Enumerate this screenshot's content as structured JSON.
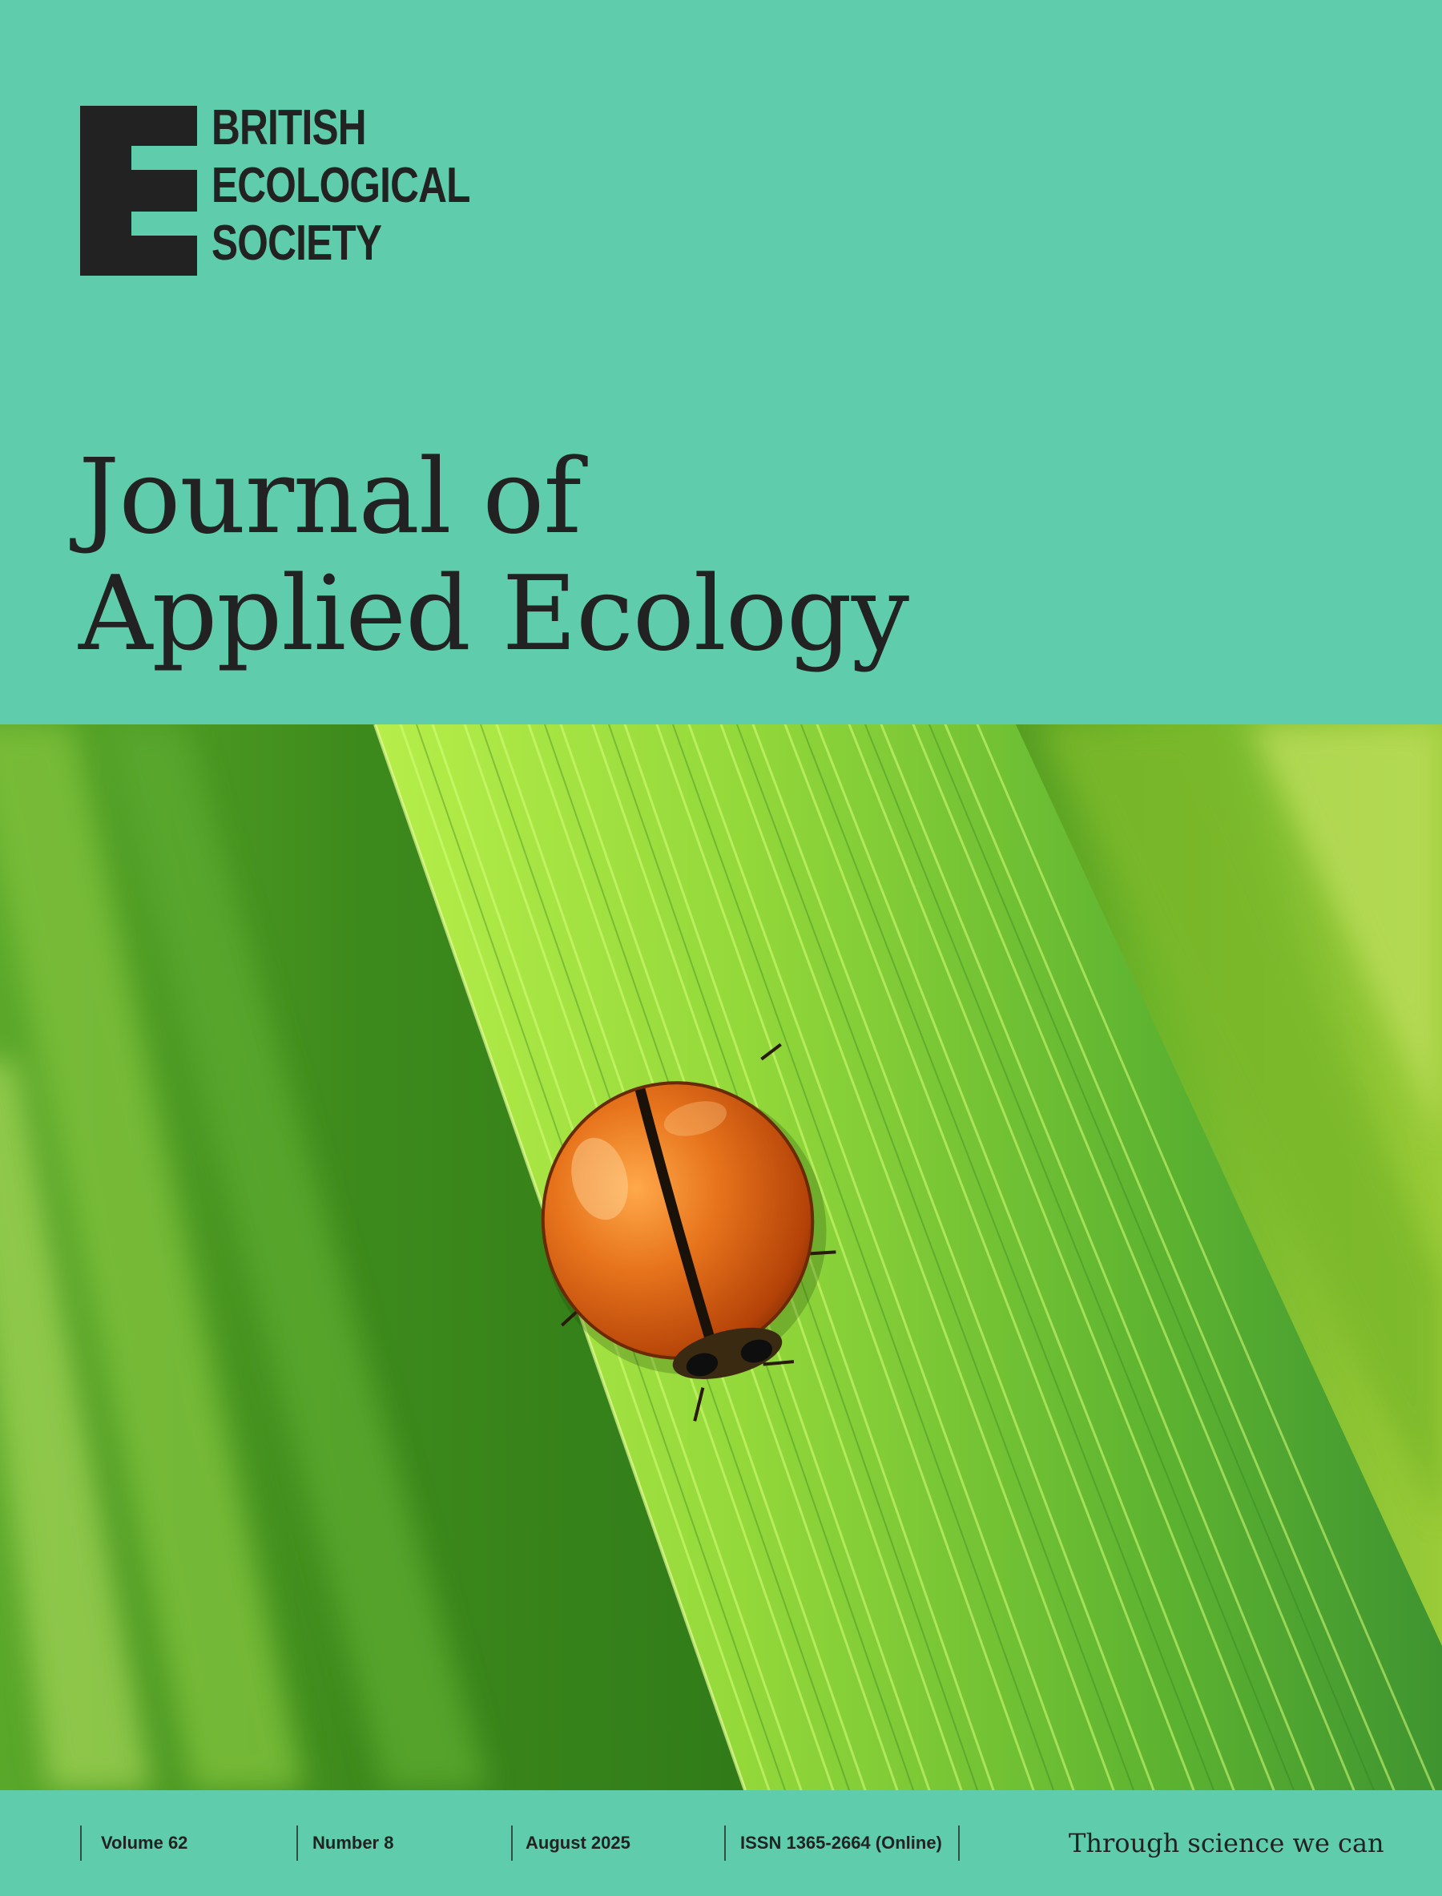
{
  "publisher": {
    "logo_lines": [
      "BRITISH",
      "ECOLOGICAL",
      "SOCIETY"
    ]
  },
  "journal": {
    "title_lines": [
      "Journal of",
      "Applied Ecology"
    ]
  },
  "cover_image": {
    "subject": "ladybird-beetle-on-grass-blade"
  },
  "footer": {
    "volume": "Volume 62",
    "number": "Number 8",
    "date": "August 2025",
    "issn": "ISSN 1365-2664 (Online)",
    "tagline": "Through science we can"
  },
  "colors": {
    "band": "#5fcdac",
    "ink": "#222222",
    "beetle": "#d65a12",
    "leaf": "#8fd63a"
  }
}
